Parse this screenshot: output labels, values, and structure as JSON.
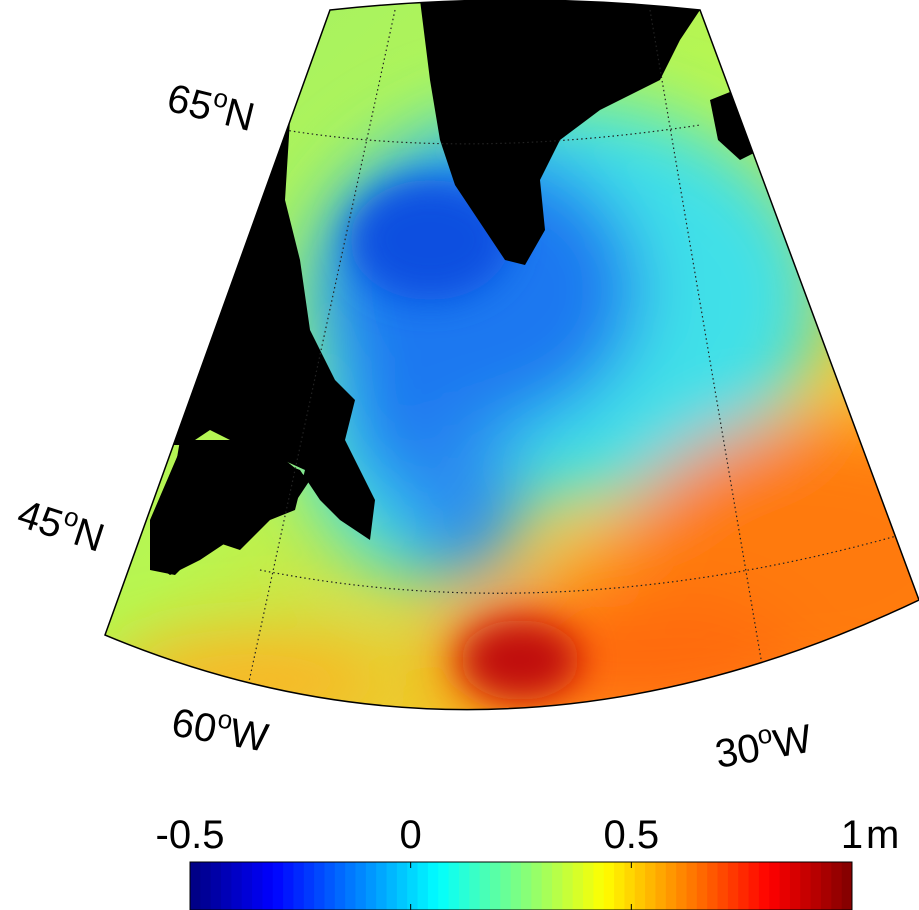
{
  "map": {
    "grid_labels": [
      {
        "number": "65",
        "degree": "o",
        "direction": "N"
      },
      {
        "number": "45",
        "degree": "o",
        "direction": "N"
      },
      {
        "number": "60",
        "degree": "o",
        "direction": "W"
      },
      {
        "number": "30",
        "degree": "o",
        "direction": "W"
      }
    ],
    "colorbar": {
      "colormap": "jet",
      "lim": [
        -0.5,
        1
      ],
      "ticks": [
        -0.5,
        0,
        0.5,
        1
      ],
      "unit": "m"
    }
  }
}
